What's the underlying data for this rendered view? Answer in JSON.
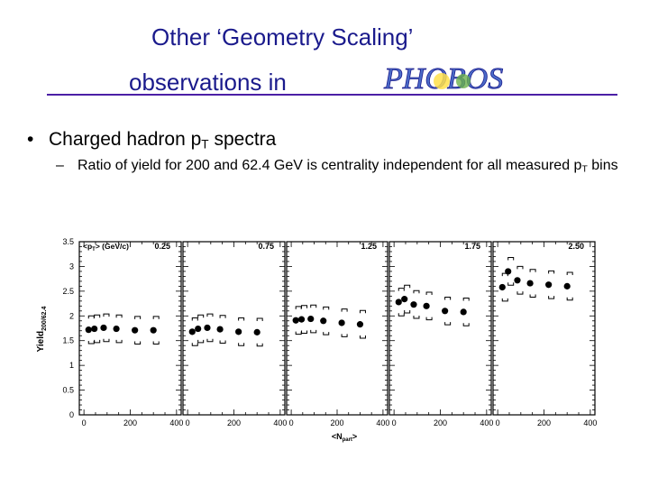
{
  "slide": {
    "title_line1": "Other ‘Geometry Scaling’",
    "title_line2": "observations in",
    "logo_text": "PHOBOS",
    "bullet_marker": "•",
    "bullet_text_a": "Charged hadron p",
    "bullet_text_sub": "T",
    "bullet_text_b": " spectra",
    "sub_marker": "–",
    "sub_text_a": "Ratio of yield for 200 and 62.4 GeV is centrality independent for all measured p",
    "sub_text_sub": "T",
    "sub_text_b": " bins"
  },
  "colors": {
    "title": "#1a1a8c",
    "rule": "#4b1fa6",
    "marker": "#000000"
  },
  "chart_data": {
    "type": "scatter",
    "ylabel": "Yield",
    "ylabel_sub": "200/62.4",
    "xlabel": "<N",
    "xlabel_sub": "part",
    "xlabel_end": ">",
    "ylim": [
      0,
      3.5
    ],
    "xlim": [
      -20,
      420
    ],
    "yticks": [
      "0",
      "0.5",
      "1",
      "1.5",
      "2",
      "2.5",
      "3",
      "3.5"
    ],
    "xticks": [
      "0",
      "200",
      "400"
    ],
    "pt_label": "<p",
    "pt_label_sub": "T",
    "pt_label_end": "> (GeV/c)",
    "panels": [
      {
        "label": "0.25",
        "x": [
          20,
          45,
          85,
          140,
          220,
          300
        ],
        "y": [
          1.72,
          1.74,
          1.76,
          1.74,
          1.71,
          1.71
        ]
      },
      {
        "label": "0.75",
        "x": [
          20,
          45,
          85,
          140,
          220,
          300
        ],
        "y": [
          1.68,
          1.74,
          1.76,
          1.73,
          1.68,
          1.67
        ]
      },
      {
        "label": "1.25",
        "x": [
          20,
          45,
          85,
          140,
          220,
          300
        ],
        "y": [
          1.91,
          1.93,
          1.94,
          1.9,
          1.86,
          1.83
        ]
      },
      {
        "label": "1.75",
        "x": [
          20,
          45,
          85,
          140,
          220,
          300
        ],
        "y": [
          2.28,
          2.34,
          2.23,
          2.2,
          2.1,
          2.08
        ]
      },
      {
        "label": "2.50",
        "x": [
          20,
          45,
          85,
          140,
          220,
          300
        ],
        "y": [
          2.58,
          2.9,
          2.72,
          2.66,
          2.63,
          2.6
        ]
      }
    ]
  }
}
